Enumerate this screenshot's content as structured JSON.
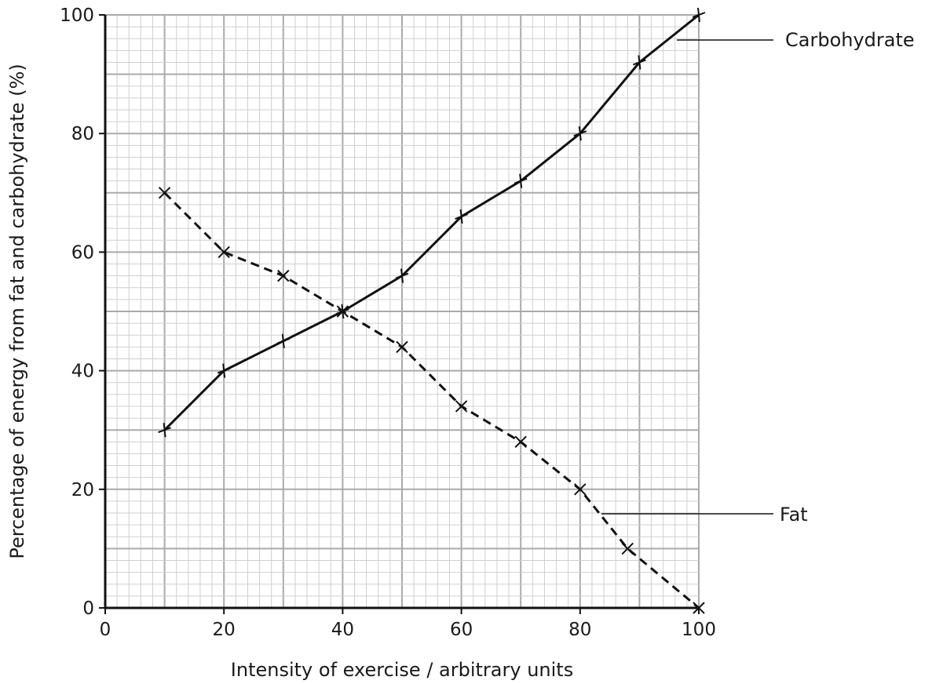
{
  "chart_data": {
    "type": "line",
    "xlabel": "Intensity of exercise / arbitrary units",
    "ylabel": "Percentage of energy from fat and carbohydrate (%)",
    "xlim": [
      0,
      100
    ],
    "ylim": [
      0,
      100
    ],
    "x_ticks": [
      "0",
      "20",
      "40",
      "60",
      "80",
      "100"
    ],
    "y_ticks": [
      "0",
      "20",
      "40",
      "60",
      "80",
      "100"
    ],
    "grid": true,
    "series": [
      {
        "name": "Carbohydrate",
        "line_style": "solid",
        "marker": "plus",
        "points": [
          {
            "x": 10,
            "y": 30
          },
          {
            "x": 20,
            "y": 40
          },
          {
            "x": 30,
            "y": 45
          },
          {
            "x": 40,
            "y": 50
          },
          {
            "x": 50,
            "y": 56
          },
          {
            "x": 60,
            "y": 66
          },
          {
            "x": 70,
            "y": 72
          },
          {
            "x": 80,
            "y": 80
          },
          {
            "x": 90,
            "y": 92
          },
          {
            "x": 100,
            "y": 100
          }
        ]
      },
      {
        "name": "Fat",
        "line_style": "dashed",
        "marker": "cross",
        "points": [
          {
            "x": 10,
            "y": 70
          },
          {
            "x": 20,
            "y": 60
          },
          {
            "x": 30,
            "y": 56
          },
          {
            "x": 40,
            "y": 50
          },
          {
            "x": 50,
            "y": 44
          },
          {
            "x": 60,
            "y": 34
          },
          {
            "x": 70,
            "y": 28
          },
          {
            "x": 80,
            "y": 20
          },
          {
            "x": 88,
            "y": 10
          },
          {
            "x": 100,
            "y": 0
          }
        ]
      }
    ],
    "colors": {
      "line": "#111111",
      "grid_major": "#aaaaaa",
      "grid_minor": "#cfcfcf"
    }
  }
}
